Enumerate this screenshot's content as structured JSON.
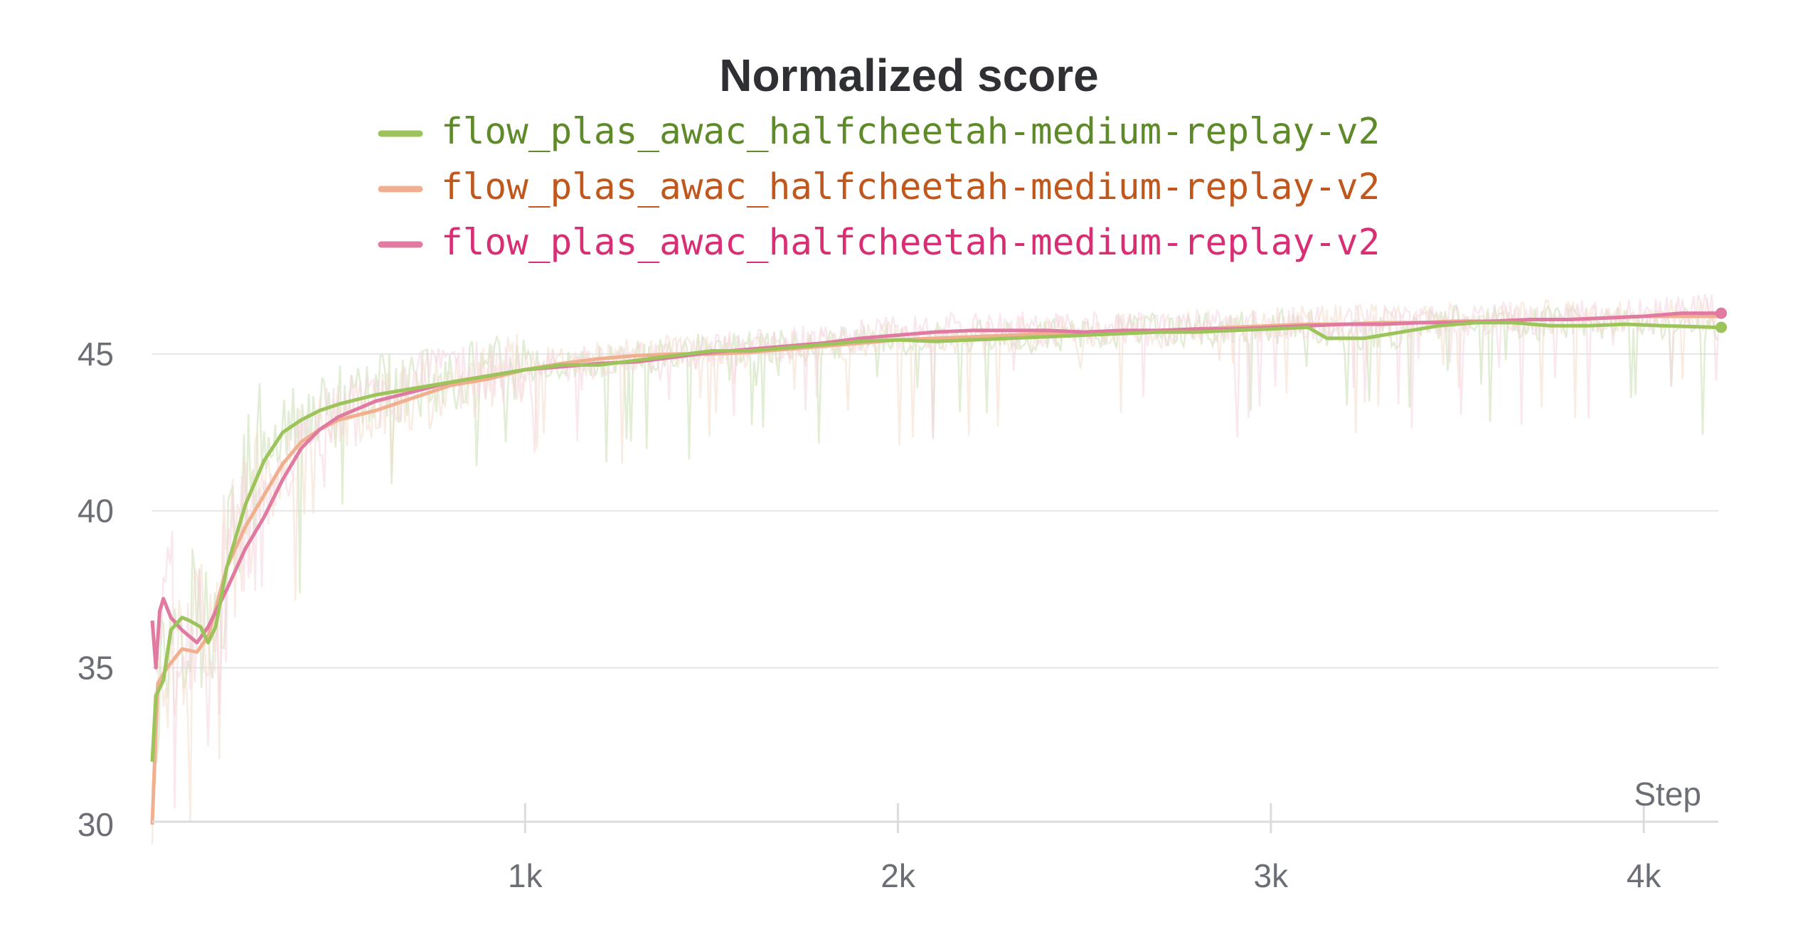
{
  "chart_data": {
    "type": "line",
    "title": "Normalized score",
    "xlabel": "Step",
    "ylabel": "",
    "xlim": [
      0,
      4200
    ],
    "ylim": [
      30,
      46.6
    ],
    "x_ticks": [
      {
        "value": 1000,
        "label": "1k"
      },
      {
        "value": 2000,
        "label": "2k"
      },
      {
        "value": 3000,
        "label": "3k"
      },
      {
        "value": 4000,
        "label": "4k"
      }
    ],
    "y_ticks": [
      {
        "value": 30,
        "label": "30"
      },
      {
        "value": 35,
        "label": "35"
      },
      {
        "value": 40,
        "label": "40"
      },
      {
        "value": 45,
        "label": "45"
      }
    ],
    "grid": true,
    "legend_position": "top-center",
    "series": [
      {
        "name": "flow_plas_awac_halfcheetah-medium-replay-v2",
        "color": "#9cc45a",
        "text_color": "#5f8a2a",
        "raw_color": "#c8deb0",
        "points": [
          [
            0,
            32
          ],
          [
            10,
            34.1
          ],
          [
            30,
            34.6
          ],
          [
            50,
            36.2
          ],
          [
            80,
            36.6
          ],
          [
            100,
            36.5
          ],
          [
            130,
            36.3
          ],
          [
            150,
            35.8
          ],
          [
            170,
            36.3
          ],
          [
            200,
            38.2
          ],
          [
            250,
            40.2
          ],
          [
            300,
            41.6
          ],
          [
            350,
            42.5
          ],
          [
            400,
            42.9
          ],
          [
            450,
            43.2
          ],
          [
            500,
            43.4
          ],
          [
            600,
            43.7
          ],
          [
            700,
            43.9
          ],
          [
            800,
            44.1
          ],
          [
            900,
            44.3
          ],
          [
            1000,
            44.5
          ],
          [
            1100,
            44.65
          ],
          [
            1200,
            44.65
          ],
          [
            1300,
            44.8
          ],
          [
            1400,
            44.95
          ],
          [
            1500,
            45.1
          ],
          [
            1600,
            45.1
          ],
          [
            1700,
            45.2
          ],
          [
            1800,
            45.3
          ],
          [
            1900,
            45.4
          ],
          [
            2000,
            45.45
          ],
          [
            2100,
            45.4
          ],
          [
            2200,
            45.45
          ],
          [
            2300,
            45.5
          ],
          [
            2400,
            45.55
          ],
          [
            2500,
            45.6
          ],
          [
            2600,
            45.65
          ],
          [
            2700,
            45.7
          ],
          [
            2800,
            45.7
          ],
          [
            2900,
            45.75
          ],
          [
            3000,
            45.8
          ],
          [
            3100,
            45.85
          ],
          [
            3150,
            45.5
          ],
          [
            3250,
            45.5
          ],
          [
            3350,
            45.7
          ],
          [
            3450,
            45.9
          ],
          [
            3550,
            46.0
          ],
          [
            3650,
            46.0
          ],
          [
            3750,
            45.9
          ],
          [
            3850,
            45.9
          ],
          [
            3950,
            45.95
          ],
          [
            4050,
            45.9
          ],
          [
            4200,
            45.85
          ]
        ]
      },
      {
        "name": "flow_plas_awac_halfcheetah-medium-replay-v2",
        "color": "#f0b090",
        "text_color": "#c0581e",
        "raw_color": "#f3ddcc",
        "points": [
          [
            0,
            30
          ],
          [
            15,
            34.5
          ],
          [
            40,
            35
          ],
          [
            80,
            35.6
          ],
          [
            120,
            35.5
          ],
          [
            150,
            36
          ],
          [
            200,
            38.2
          ],
          [
            250,
            39.5
          ],
          [
            300,
            40.5
          ],
          [
            350,
            41.5
          ],
          [
            400,
            42.2
          ],
          [
            450,
            42.6
          ],
          [
            500,
            42.9
          ],
          [
            600,
            43.2
          ],
          [
            700,
            43.6
          ],
          [
            800,
            44.0
          ],
          [
            900,
            44.2
          ],
          [
            1000,
            44.5
          ],
          [
            1100,
            44.7
          ],
          [
            1200,
            44.85
          ],
          [
            1300,
            44.95
          ],
          [
            1400,
            45.0
          ],
          [
            1500,
            45.0
          ],
          [
            1600,
            45.05
          ],
          [
            1700,
            45.15
          ],
          [
            1800,
            45.25
          ],
          [
            1900,
            45.35
          ],
          [
            2000,
            45.45
          ],
          [
            2100,
            45.5
          ],
          [
            2200,
            45.55
          ],
          [
            2300,
            45.6
          ],
          [
            2400,
            45.65
          ],
          [
            2500,
            45.65
          ],
          [
            2600,
            45.7
          ],
          [
            2700,
            45.75
          ],
          [
            2800,
            45.8
          ],
          [
            2900,
            45.85
          ],
          [
            3000,
            45.9
          ],
          [
            3100,
            45.95
          ],
          [
            3200,
            45.95
          ],
          [
            3300,
            46.0
          ],
          [
            3400,
            46.0
          ],
          [
            3500,
            46.05
          ],
          [
            3600,
            46.05
          ],
          [
            3700,
            46.1
          ],
          [
            3800,
            46.1
          ],
          [
            3900,
            46.15
          ],
          [
            4000,
            46.2
          ],
          [
            4100,
            46.2
          ],
          [
            4200,
            46.2
          ]
        ]
      },
      {
        "name": "flow_plas_awac_halfcheetah-medium-replay-v2",
        "color": "#e07aa0",
        "text_color": "#d82e74",
        "raw_color": "#f6d6e2",
        "points": [
          [
            0,
            36.5
          ],
          [
            10,
            35
          ],
          [
            20,
            36.8
          ],
          [
            30,
            37.2
          ],
          [
            50,
            36.6
          ],
          [
            80,
            36.2
          ],
          [
            120,
            35.8
          ],
          [
            150,
            36.3
          ],
          [
            200,
            37.5
          ],
          [
            250,
            38.8
          ],
          [
            300,
            39.8
          ],
          [
            350,
            41.0
          ],
          [
            400,
            42.0
          ],
          [
            450,
            42.6
          ],
          [
            500,
            43.0
          ],
          [
            600,
            43.5
          ],
          [
            700,
            43.8
          ],
          [
            800,
            44.1
          ],
          [
            900,
            44.3
          ],
          [
            1000,
            44.5
          ],
          [
            1100,
            44.6
          ],
          [
            1200,
            44.7
          ],
          [
            1300,
            44.75
          ],
          [
            1400,
            44.9
          ],
          [
            1500,
            45.05
          ],
          [
            1600,
            45.15
          ],
          [
            1700,
            45.25
          ],
          [
            1800,
            45.35
          ],
          [
            1900,
            45.5
          ],
          [
            2000,
            45.6
          ],
          [
            2100,
            45.7
          ],
          [
            2200,
            45.75
          ],
          [
            2300,
            45.75
          ],
          [
            2400,
            45.75
          ],
          [
            2500,
            45.7
          ],
          [
            2600,
            45.75
          ],
          [
            2700,
            45.75
          ],
          [
            2800,
            45.8
          ],
          [
            2900,
            45.8
          ],
          [
            3000,
            45.85
          ],
          [
            3100,
            45.9
          ],
          [
            3200,
            45.95
          ],
          [
            3300,
            45.95
          ],
          [
            3400,
            46.0
          ],
          [
            3500,
            46.0
          ],
          [
            3600,
            46.05
          ],
          [
            3700,
            46.1
          ],
          [
            3800,
            46.1
          ],
          [
            3900,
            46.15
          ],
          [
            4000,
            46.2
          ],
          [
            4100,
            46.3
          ],
          [
            4200,
            46.3
          ]
        ]
      }
    ]
  }
}
